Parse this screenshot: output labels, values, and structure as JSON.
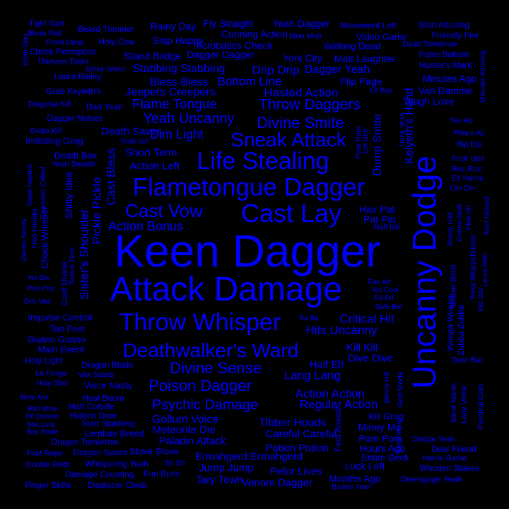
{
  "background": "#000000",
  "word_color": "#0000ff",
  "words": [
    "Keen Dagger",
    "Uncanny Dodge",
    "Attack Damage",
    "Life Stealing",
    "Flametongue Dagger",
    "Cast Lay",
    "Throw Whisper",
    "Deathwalker's Ward",
    "Sneak Attack",
    "Cast Vow",
    "Divine Smite",
    "Throw Daggers",
    "Yeah Uncanny",
    "Divine Sense",
    "Poison Dagger",
    "Psychic Damage",
    "Flame Tongue",
    "Jeepers Creepers",
    "Hasted Action",
    "Bottom Line",
    "Drip Drip",
    "Dagger Yeah",
    "Stabbing Stabbing",
    "Bless Bless",
    "Kelyeth's Hand",
    "Dump Smite",
    "Action Bonus",
    "Pickle Pickle",
    "Cast Bless",
    "Sister's Shoulder",
    "Dim Light",
    "Death Saves",
    "Short Term",
    "Action Left",
    "Critical Hit",
    "Hits Uncanny",
    "Lang Lang",
    "Action Action",
    "Regular Action",
    "Dive Dive",
    "Kill Kill",
    "Half Elf",
    "Tibber Hoods",
    "Gollum Voice",
    "Meteorite Die",
    "Paladin Attack",
    "Careful Careful",
    "Potion Potion",
    "Ermahgerd Ermahgerd",
    "Jump Jump",
    "Tary Town",
    "Venom Dagger",
    "Pelor Lives",
    "Months Ago",
    "Hours Ago",
    "Luck Left",
    "Entire Deck",
    "Pom Pom",
    "Miney Mo",
    "Kill Grog",
    "Feet Ahead",
    "God Mode",
    "Benny Hill",
    "Hair Pat",
    "Pat Pat",
    "Half Ish",
    "Pow Pow",
    "Eat Shit",
    "Drink Yeah",
    "Fan Art",
    "Act Cool",
    "Ed Ed",
    "Safe Bet",
    "Ba Ba",
    "Chuck Whisper",
    "Shitty Idea",
    "Cast Divine",
    "Bonus Time",
    "Impulse Control",
    "Ten Feet",
    "Guano Guano",
    "Main Event",
    "Holy Light",
    "Dragon Blade",
    "La Forge",
    "Vax Starts",
    "Holy Shit",
    "Voice Nasty",
    "Bear Ass",
    "Heal Boom",
    "Matt Colville",
    "Roll Wow",
    "Hidden Door",
    "Pit Demon",
    "Start Stabbing",
    "Shit Luck",
    "Boy Smile",
    "Lembas Bread",
    "Dragon Tomorrow",
    "Stove Stove",
    "Foot Rope",
    "Dragon Sword",
    "Double Birds",
    "Whispering Yeah",
    "Sh Sh",
    "Damage Counting",
    "Fun Buns",
    "Finger Skills",
    "Displacer Cloak",
    "Bodies Yeah",
    "Wooden Stakes",
    "Disengage Yeah",
    "Home Game",
    "Dear Friend",
    "Dodge Yeah",
    "Work Work",
    "Lady Voice",
    "Steve Martin",
    "Percival Coin",
    "Wooga Wooga",
    "Zubba Zubba",
    "Mother Bitch",
    "Vac Dar",
    "Feet Sharpshooter",
    "Laura Matt",
    "Bossy Half",
    "Gonna Stab",
    "Pike Hit",
    "Feet Helved",
    "Door Bar",
    "Cin Cin",
    "Ed Harris",
    "Roc Roc",
    "Fuck Ups",
    "Bip Bip",
    "Pike's Ac",
    "Ten Hit",
    "Tough Love",
    "Van Damme",
    "Minutes Ago",
    "Hunter's Mark",
    "False Bottom",
    "Minutes Attuning",
    "Friendly Fire",
    "Start Attuning",
    "Dead Tomorrow",
    "Video Game",
    "Movement Left",
    "Walking Dead",
    "Matt Laughter",
    "Muh Muh",
    "Yeah Dagger",
    "Cunning Action",
    "Fly Straight",
    "Acrobatics Check",
    "York City",
    "Flip Page",
    "Elf Boy",
    "Dagger Dagger",
    "Stand Bridge",
    "Slap Happy",
    "Rainy Day",
    "Beard Trimmer",
    "Holy Cow",
    "Tight Spot",
    "Bless Roll",
    "Front Desk",
    "Check Perception",
    "Thieves Tools",
    "Entire World",
    "Laura Bailey",
    "Grab Keyleth's",
    "Disguise Kill",
    "Dad Yeah",
    "Dagger Noises",
    "Gotta Kill",
    "Imitating Grog",
    "Death Box",
    "Yeah Stealth",
    "Yeah Girl",
    "Yeah Son",
    "Nope Hasted",
    "Character Called",
    "Fred Freddie",
    "Queen Sends",
    "Ho Dis",
    "Pep Pop",
    "Dm Vax"
  ]
}
